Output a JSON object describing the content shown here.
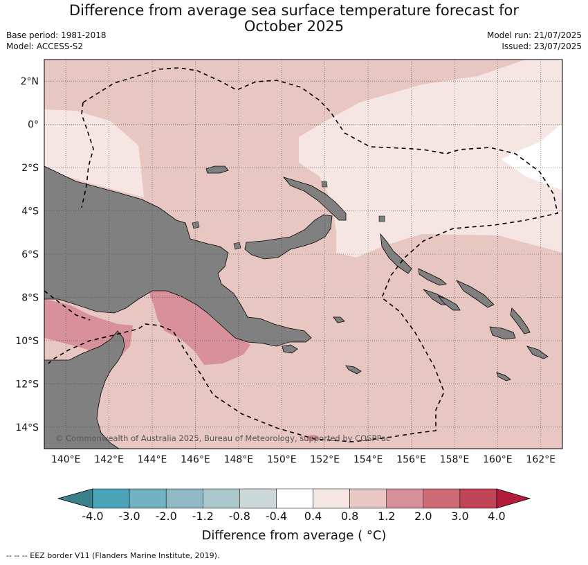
{
  "header": {
    "title_line1": "Difference from average sea surface temperature forecast for",
    "title_line2": "October 2025",
    "base_period": "Base period: 1981-2018",
    "model": "Model: ACCESS-S2",
    "model_run": "Model run: 21/07/2025",
    "issued": "Issued: 23/07/2025"
  },
  "map": {
    "lon_range": [
      139,
      163
    ],
    "lat_range": [
      -15,
      3
    ],
    "lon_ticks": [
      "140°E",
      "142°E",
      "144°E",
      "146°E",
      "148°E",
      "150°E",
      "152°E",
      "154°E",
      "156°E",
      "158°E",
      "160°E",
      "162°E"
    ],
    "lat_ticks": [
      "2°N",
      "0°",
      "2°S",
      "4°S",
      "6°S",
      "8°S",
      "10°S",
      "12°S",
      "14°S"
    ],
    "copyright": "© Commonwealth of Australia 2025, Bureau of Meteorology, supported by COSPPac",
    "land_color": "#808080",
    "grid": true
  },
  "colorbar": {
    "boundaries": [
      "-4.0",
      "-3.0",
      "-2.0",
      "-1.2",
      "-0.8",
      "-0.4",
      "0.4",
      "0.8",
      "1.2",
      "2.0",
      "3.0",
      "4.0"
    ],
    "colors": [
      "#4aa3b6",
      "#72b1c1",
      "#8fbac5",
      "#a9c8cc",
      "#ccd7da",
      "#ffffff",
      "#f5e6e4",
      "#e8c6c2",
      "#d8909a",
      "#cf6b76",
      "#c04657"
    ],
    "extend_low_color": "#3c7f8d",
    "extend_high_color": "#b11c3c",
    "label": "Difference from average ( °C)"
  },
  "footnote": "--  --  -- EEZ border V11 (Flanders Marine Institute, 2019)."
}
